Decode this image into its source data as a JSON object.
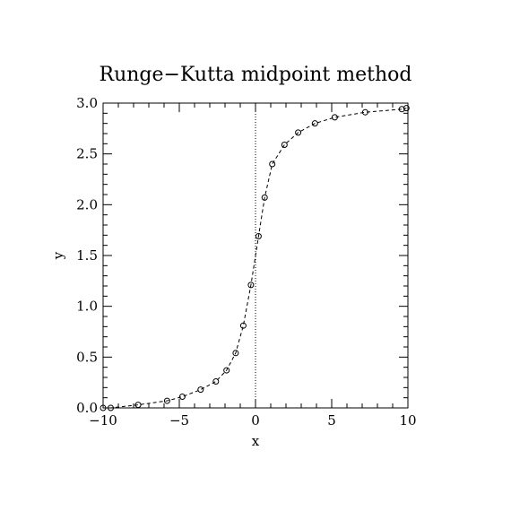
{
  "chart_data": {
    "type": "line",
    "title": "Runge−Kutta midpoint method",
    "xlabel": "x",
    "ylabel": "y",
    "xlim": [
      -10,
      10
    ],
    "ylim": [
      0,
      3
    ],
    "x_ticks": [
      -10,
      -5,
      0,
      5,
      10
    ],
    "x_tick_labels": [
      "−10",
      "−5",
      "0",
      "5",
      "10"
    ],
    "y_ticks": [
      0,
      0.5,
      1,
      1.5,
      2,
      2.5,
      3
    ],
    "y_tick_labels": [
      "0.0",
      "0.5",
      "1.0",
      "1.5",
      "2.0",
      "2.5",
      "3.0"
    ],
    "grid": false,
    "reference_line_x": 0,
    "series": [
      {
        "line_style": "dashed",
        "marker": "circle",
        "x": [
          -10.0,
          -9.5,
          -7.7,
          -5.8,
          -4.8,
          -3.6,
          -2.6,
          -1.9,
          -1.3,
          -0.8,
          -0.3,
          0.2,
          0.6,
          1.1,
          1.9,
          2.8,
          3.9,
          5.2,
          7.2,
          9.6,
          9.9
        ],
        "y": [
          0.0,
          0.0,
          0.03,
          0.07,
          0.11,
          0.18,
          0.26,
          0.37,
          0.54,
          0.81,
          1.21,
          1.69,
          2.07,
          2.4,
          2.59,
          2.71,
          2.8,
          2.86,
          2.91,
          2.94,
          2.95
        ]
      }
    ]
  }
}
